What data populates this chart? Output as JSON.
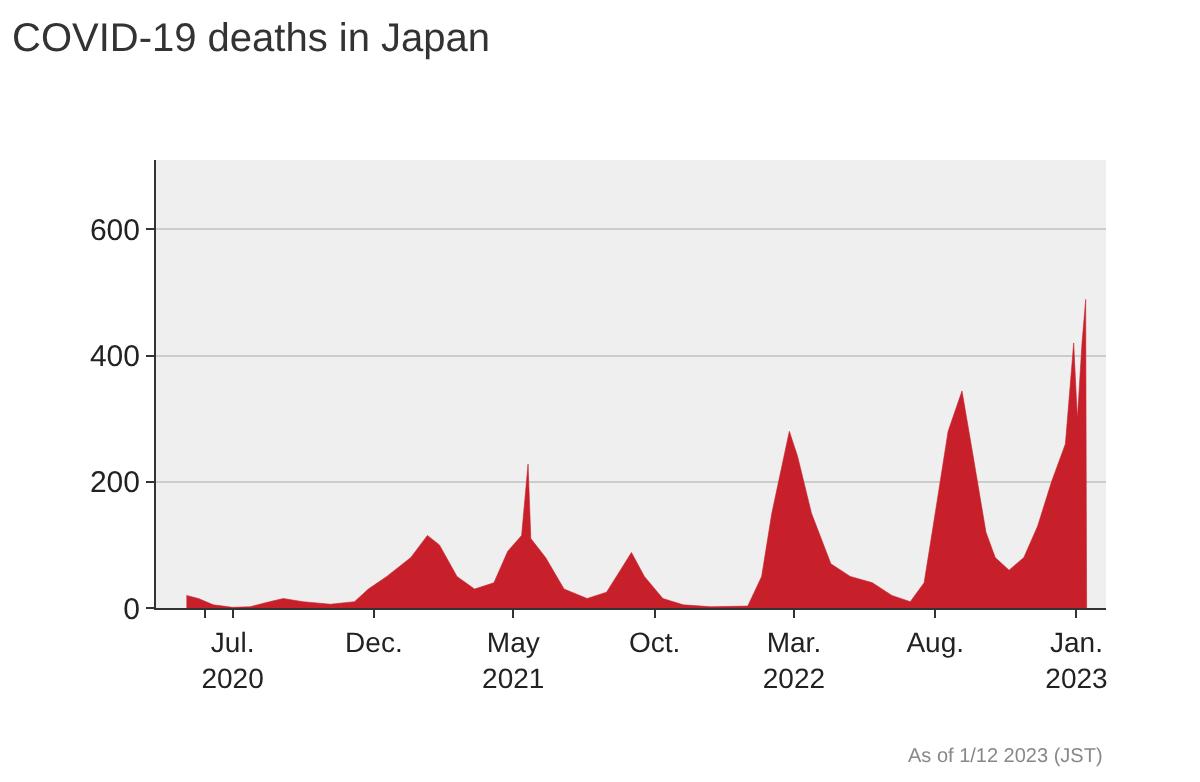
{
  "chart_data": {
    "type": "area",
    "title": "COVID-19 deaths in Japan",
    "annotations": [
      "As of 1/12 2023 (JST)"
    ],
    "x": [
      "2020-05-12",
      "2020-05-25",
      "2020-06-10",
      "2020-07-01",
      "2020-07-20",
      "2020-08-10",
      "2020-08-25",
      "2020-09-15",
      "2020-10-15",
      "2020-11-10",
      "2020-11-25",
      "2020-12-15",
      "2021-01-10",
      "2021-01-28",
      "2021-02-10",
      "2021-03-01",
      "2021-03-20",
      "2021-04-10",
      "2021-04-25",
      "2021-05-10",
      "2021-05-17",
      "2021-05-20",
      "2021-06-05",
      "2021-06-25",
      "2021-07-20",
      "2021-08-10",
      "2021-08-25",
      "2021-09-06",
      "2021-09-20",
      "2021-10-10",
      "2021-11-01",
      "2021-12-01",
      "2022-01-10",
      "2022-01-25",
      "2022-02-05",
      "2022-02-24",
      "2022-03-05",
      "2022-03-20",
      "2022-04-10",
      "2022-05-01",
      "2022-05-25",
      "2022-06-15",
      "2022-07-05",
      "2022-07-20",
      "2022-08-01",
      "2022-08-15",
      "2022-08-30",
      "2022-09-10",
      "2022-09-25",
      "2022-10-05",
      "2022-10-20",
      "2022-11-05",
      "2022-11-20",
      "2022-12-05",
      "2022-12-20",
      "2022-12-29",
      "2023-01-02",
      "2023-01-07",
      "2023-01-11",
      "2023-01-12"
    ],
    "series": [
      {
        "color": "#c8202a",
        "values": [
          20,
          15,
          5,
          1,
          2,
          10,
          15,
          10,
          6,
          10,
          30,
          50,
          80,
          115,
          100,
          50,
          30,
          40,
          90,
          115,
          228,
          110,
          80,
          30,
          15,
          25,
          60,
          88,
          50,
          15,
          5,
          2,
          3,
          50,
          150,
          280,
          240,
          150,
          70,
          50,
          40,
          20,
          10,
          40,
          150,
          280,
          344,
          250,
          120,
          80,
          60,
          80,
          130,
          200,
          260,
          420,
          300,
          420,
          489,
          0
        ]
      }
    ],
    "xlim": [
      "2020-04-09",
      "2023-02-02"
    ],
    "xticks": [
      {
        "value": "2020-06-01",
        "label": null
      },
      {
        "value": "2020-07-01",
        "label": "Jul.\n2020"
      },
      {
        "value": "2020-12-01",
        "label": "Dec."
      },
      {
        "value": "2021-05-01",
        "label": "May\n2021"
      },
      {
        "value": "2021-10-01",
        "label": "Oct."
      },
      {
        "value": "2022-03-01",
        "label": "Mar.\n2022"
      },
      {
        "value": "2022-08-01",
        "label": "Aug."
      },
      {
        "value": "2023-01-01",
        "label": "Jan.\n2023"
      }
    ],
    "ylim": [
      0,
      710
    ],
    "yticks": [
      0,
      200,
      400,
      600
    ],
    "grid": "y"
  }
}
